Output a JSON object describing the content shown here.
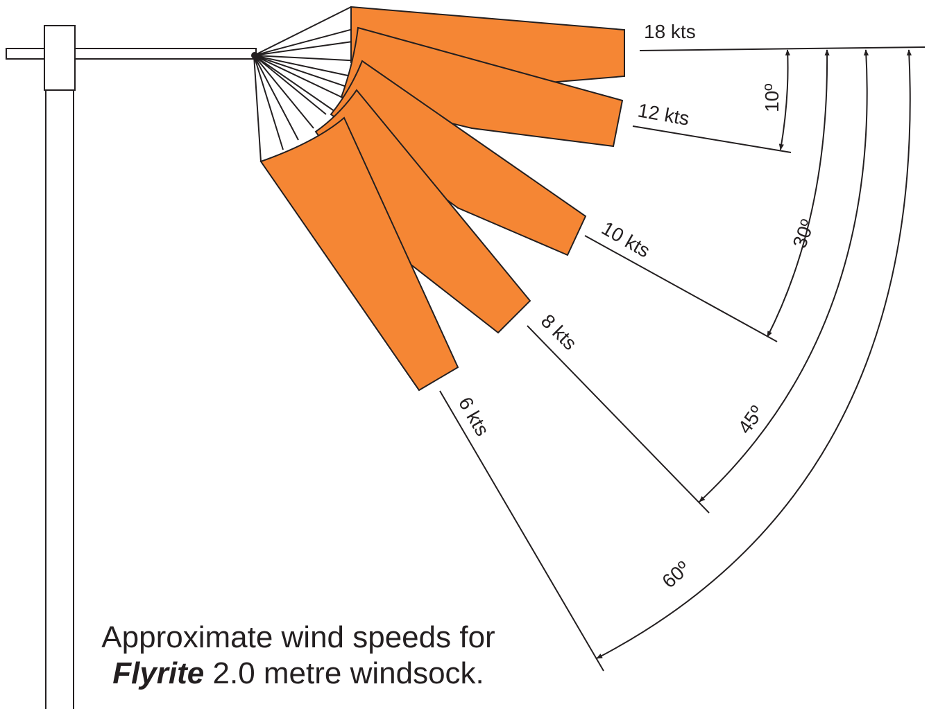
{
  "colors": {
    "sock": "#f58634",
    "ink": "#231f20",
    "background": "#ffffff"
  },
  "speed_labels": [
    "18 kts",
    "12 kts",
    "10 kts",
    "8 kts",
    "6 kts"
  ],
  "angle_labels": [
    "10º",
    "30º",
    "45º",
    "60º"
  ],
  "caption": {
    "line1": "Approximate wind speeds for",
    "brand": "Flyrite",
    "rest": "2.0 metre windsock."
  }
}
